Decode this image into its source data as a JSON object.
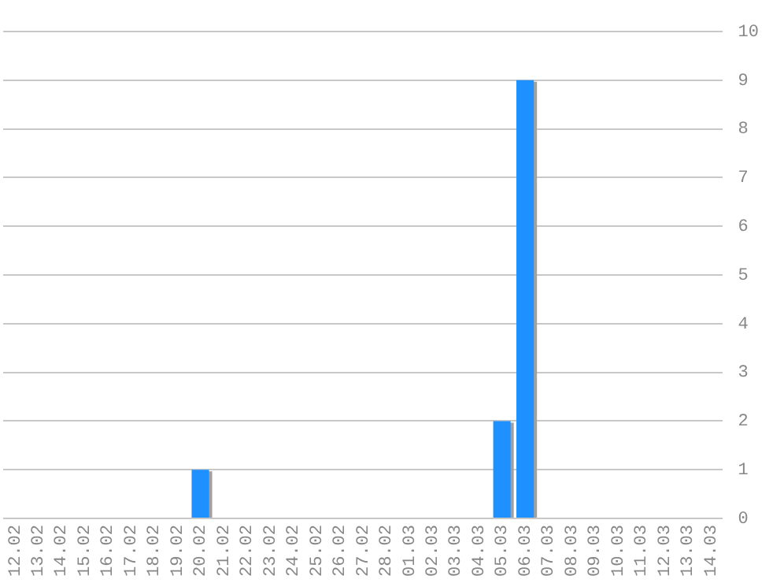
{
  "chart_data": {
    "type": "bar",
    "categories": [
      "12.02",
      "13.02",
      "14.02",
      "15.02",
      "16.02",
      "17.02",
      "18.02",
      "19.02",
      "20.02",
      "21.02",
      "22.02",
      "23.02",
      "24.02",
      "25.02",
      "26.02",
      "27.02",
      "28.02",
      "01.03",
      "02.03",
      "03.03",
      "04.03",
      "05.03",
      "06.03",
      "07.03",
      "08.03",
      "09.03",
      "10.03",
      "11.03",
      "12.03",
      "13.03",
      "14.03"
    ],
    "values": [
      0,
      0,
      0,
      0,
      0,
      0,
      0,
      0,
      1,
      0,
      0,
      0,
      0,
      0,
      0,
      0,
      0,
      0,
      0,
      0,
      0,
      2,
      9,
      0,
      0,
      0,
      0,
      0,
      0,
      0,
      0
    ],
    "color": "#1e90ff",
    "ylim": [
      0,
      10
    ],
    "yticks": [
      0,
      1,
      2,
      3,
      4,
      5,
      6,
      7,
      8,
      9,
      10
    ],
    "grid": "y"
  }
}
